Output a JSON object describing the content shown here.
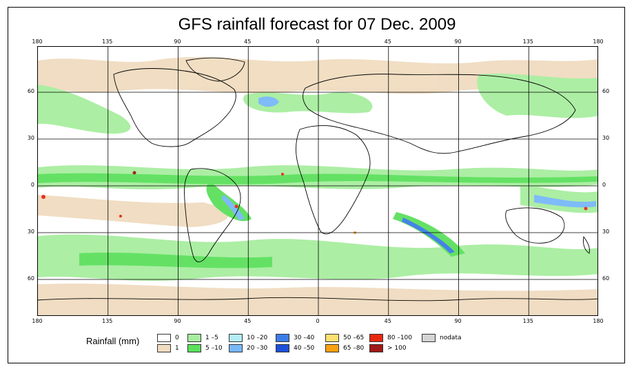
{
  "title": "GFS rainfall forecast for 07 Dec. 2009",
  "lon_ticks": [
    "180",
    "135",
    "90",
    "45",
    "0",
    "45",
    "90",
    "135",
    "180"
  ],
  "lat_ticks_left": [
    "60",
    "30",
    "0",
    "30",
    "60"
  ],
  "lat_ticks_right": [
    "60",
    "30",
    "0",
    "30",
    "60"
  ],
  "legend": {
    "title": "Rainfall (mm)",
    "items": [
      {
        "label": "0",
        "color": "#ffffff"
      },
      {
        "label": "1",
        "color": "#f0dcc0"
      },
      {
        "label": "1 –5",
        "color": "#a8eea0"
      },
      {
        "label": "5 –10",
        "color": "#5ce05c"
      },
      {
        "label": "10 –20",
        "color": "#b4ecf8"
      },
      {
        "label": "20 –30",
        "color": "#78b8f8"
      },
      {
        "label": "30 –40",
        "color": "#3c7ce8"
      },
      {
        "label": "40 –50",
        "color": "#1e50d8"
      },
      {
        "label": "50 –65",
        "color": "#fce070"
      },
      {
        "label": "65 –80",
        "color": "#f8a010"
      },
      {
        "label": "80 –100",
        "color": "#e82810"
      },
      {
        "label": "> 100",
        "color": "#a01818"
      },
      {
        "label": "nodata",
        "color": "#d4d4d4"
      }
    ]
  }
}
